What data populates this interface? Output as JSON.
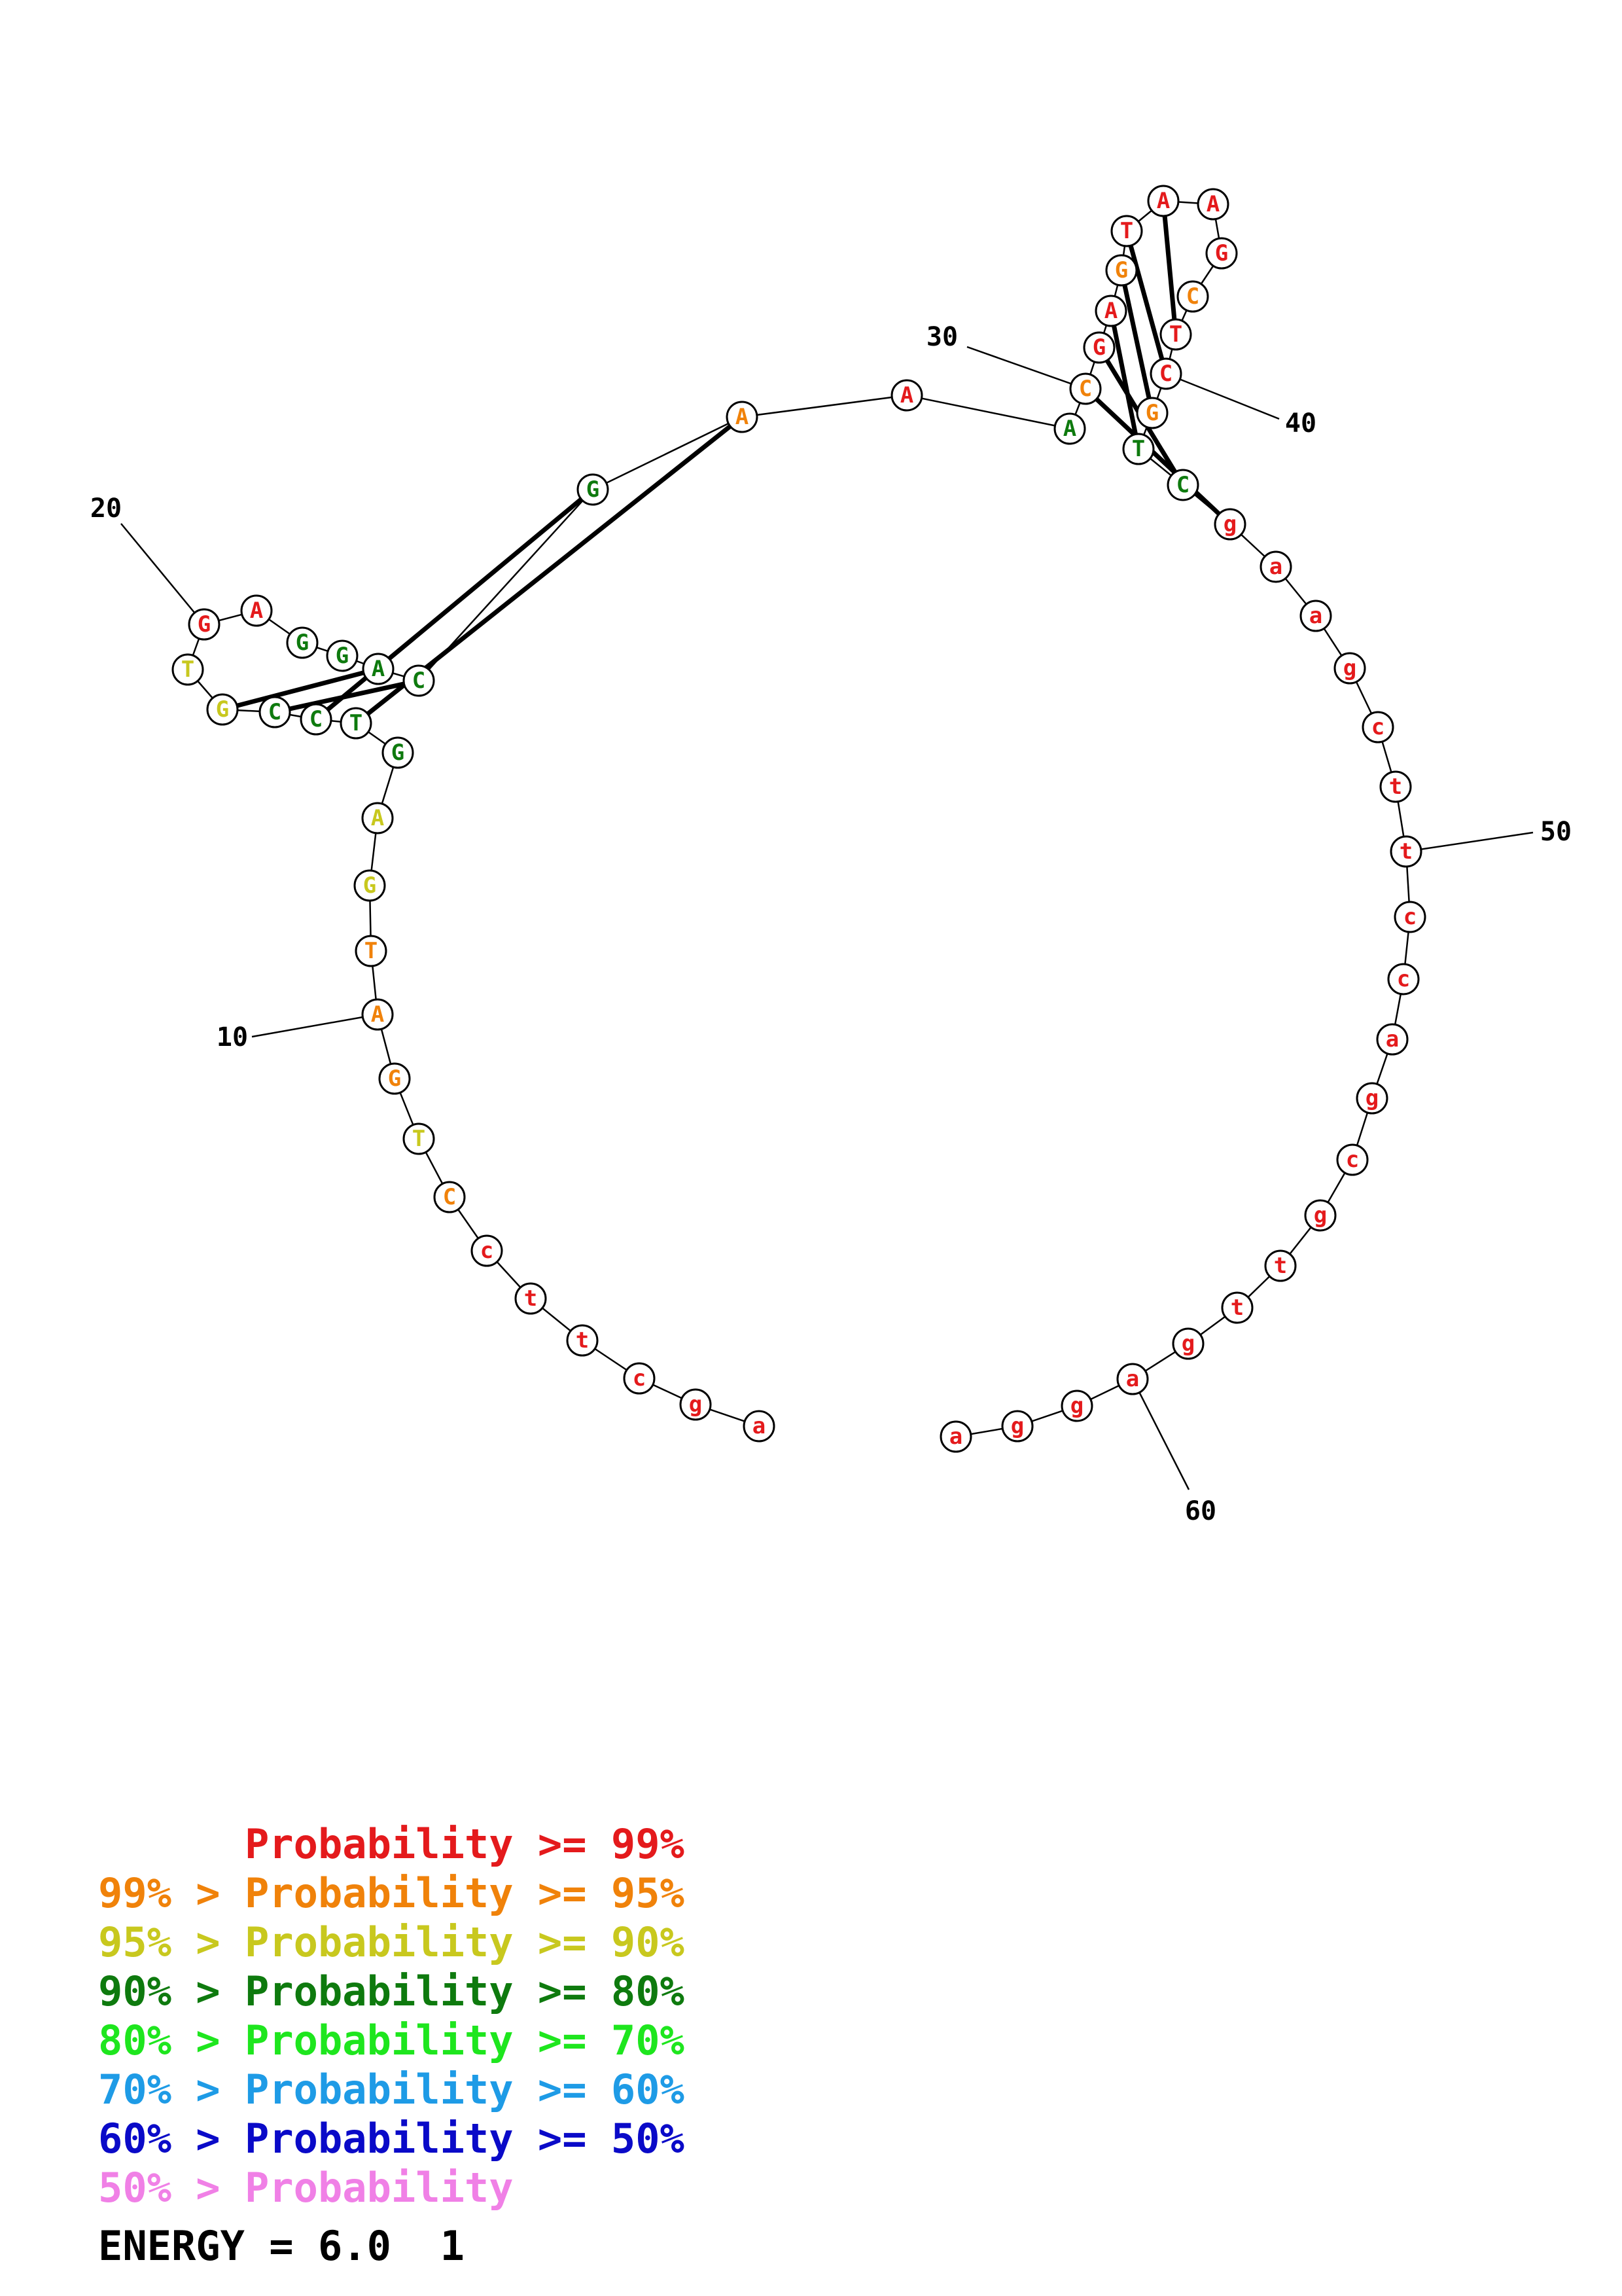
{
  "colors": {
    "p99": "#e41a1c",
    "p95": "#f0820a",
    "p90": "#c8c81e",
    "p80": "#0e7a0e",
    "p70": "#1ee61e",
    "p60": "#1e9be6",
    "p50": "#0a0ac8",
    "plow": "#f080e6"
  },
  "sequence": [
    {
      "base": "a",
      "c": "p99"
    },
    {
      "base": "g",
      "c": "p99"
    },
    {
      "base": "c",
      "c": "p99"
    },
    {
      "base": "t",
      "c": "p99"
    },
    {
      "base": "t",
      "c": "p99"
    },
    {
      "base": "c",
      "c": "p99"
    },
    {
      "base": "C",
      "c": "p95"
    },
    {
      "base": "T",
      "c": "p90"
    },
    {
      "base": "G",
      "c": "p95"
    },
    {
      "base": "A",
      "c": "p95"
    },
    {
      "base": "T",
      "c": "p95"
    },
    {
      "base": "G",
      "c": "p90"
    },
    {
      "base": "A",
      "c": "p90"
    },
    {
      "base": "G",
      "c": "p80"
    },
    {
      "base": "T",
      "c": "p80"
    },
    {
      "base": "C",
      "c": "p80"
    },
    {
      "base": "C",
      "c": "p80"
    },
    {
      "base": "G",
      "c": "p90"
    },
    {
      "base": "T",
      "c": "p90"
    },
    {
      "base": "G",
      "c": "p99"
    },
    {
      "base": "A",
      "c": "p99"
    },
    {
      "base": "G",
      "c": "p80"
    },
    {
      "base": "G",
      "c": "p80"
    },
    {
      "base": "A",
      "c": "p80"
    },
    {
      "base": "C",
      "c": "p80"
    },
    {
      "base": "G",
      "c": "p80"
    },
    {
      "base": "A",
      "c": "p95"
    },
    {
      "base": "A",
      "c": "p99"
    },
    {
      "base": "A",
      "c": "p80"
    },
    {
      "base": "C",
      "c": "p95"
    },
    {
      "base": "G",
      "c": "p99"
    },
    {
      "base": "A",
      "c": "p99"
    },
    {
      "base": "G",
      "c": "p95"
    },
    {
      "base": "T",
      "c": "p99"
    },
    {
      "base": "A",
      "c": "p99"
    },
    {
      "base": "A",
      "c": "p99"
    },
    {
      "base": "G",
      "c": "p99"
    },
    {
      "base": "C",
      "c": "p95"
    },
    {
      "base": "T",
      "c": "p99"
    },
    {
      "base": "C",
      "c": "p99"
    },
    {
      "base": "G",
      "c": "p95"
    },
    {
      "base": "T",
      "c": "p80"
    },
    {
      "base": "C",
      "c": "p80"
    },
    {
      "base": "g",
      "c": "p99"
    },
    {
      "base": "a",
      "c": "p99"
    },
    {
      "base": "a",
      "c": "p99"
    },
    {
      "base": "g",
      "c": "p99"
    },
    {
      "base": "c",
      "c": "p99"
    },
    {
      "base": "t",
      "c": "p99"
    },
    {
      "base": "t",
      "c": "p99"
    },
    {
      "base": "c",
      "c": "p99"
    },
    {
      "base": "c",
      "c": "p99"
    },
    {
      "base": "a",
      "c": "p99"
    },
    {
      "base": "g",
      "c": "p99"
    },
    {
      "base": "c",
      "c": "p99"
    },
    {
      "base": "g",
      "c": "p99"
    },
    {
      "base": "t",
      "c": "p99"
    },
    {
      "base": "t",
      "c": "p99"
    },
    {
      "base": "g",
      "c": "p99"
    },
    {
      "base": "a",
      "c": "p99"
    },
    {
      "base": "g",
      "c": "p99"
    },
    {
      "base": "g",
      "c": "p99"
    },
    {
      "base": "a",
      "c": "p99"
    }
  ],
  "pairs": [
    [
      14,
      26
    ],
    [
      15,
      25
    ],
    [
      16,
      24
    ],
    [
      17,
      23
    ],
    [
      29,
      43
    ],
    [
      30,
      42
    ],
    [
      31,
      41
    ],
    [
      32,
      40
    ],
    [
      33,
      39
    ],
    [
      34,
      38
    ]
  ],
  "position_labels": [
    "10",
    "20",
    "30",
    "40",
    "50",
    "60"
  ],
  "legend": [
    {
      "text": "      Probability >= 99%",
      "c": "p99"
    },
    {
      "text": "99% > Probability >= 95%",
      "c": "p95"
    },
    {
      "text": "95% > Probability >= 90%",
      "c": "p90"
    },
    {
      "text": "90% > Probability >= 80%",
      "c": "p80"
    },
    {
      "text": "80% > Probability >= 70%",
      "c": "p70"
    },
    {
      "text": "70% > Probability >= 60%",
      "c": "p60"
    },
    {
      "text": "60% > Probability >= 50%",
      "c": "p50"
    },
    {
      "text": "50% > Probability",
      "c": "plow"
    }
  ],
  "energy": "ENERGY = 6.0  1"
}
